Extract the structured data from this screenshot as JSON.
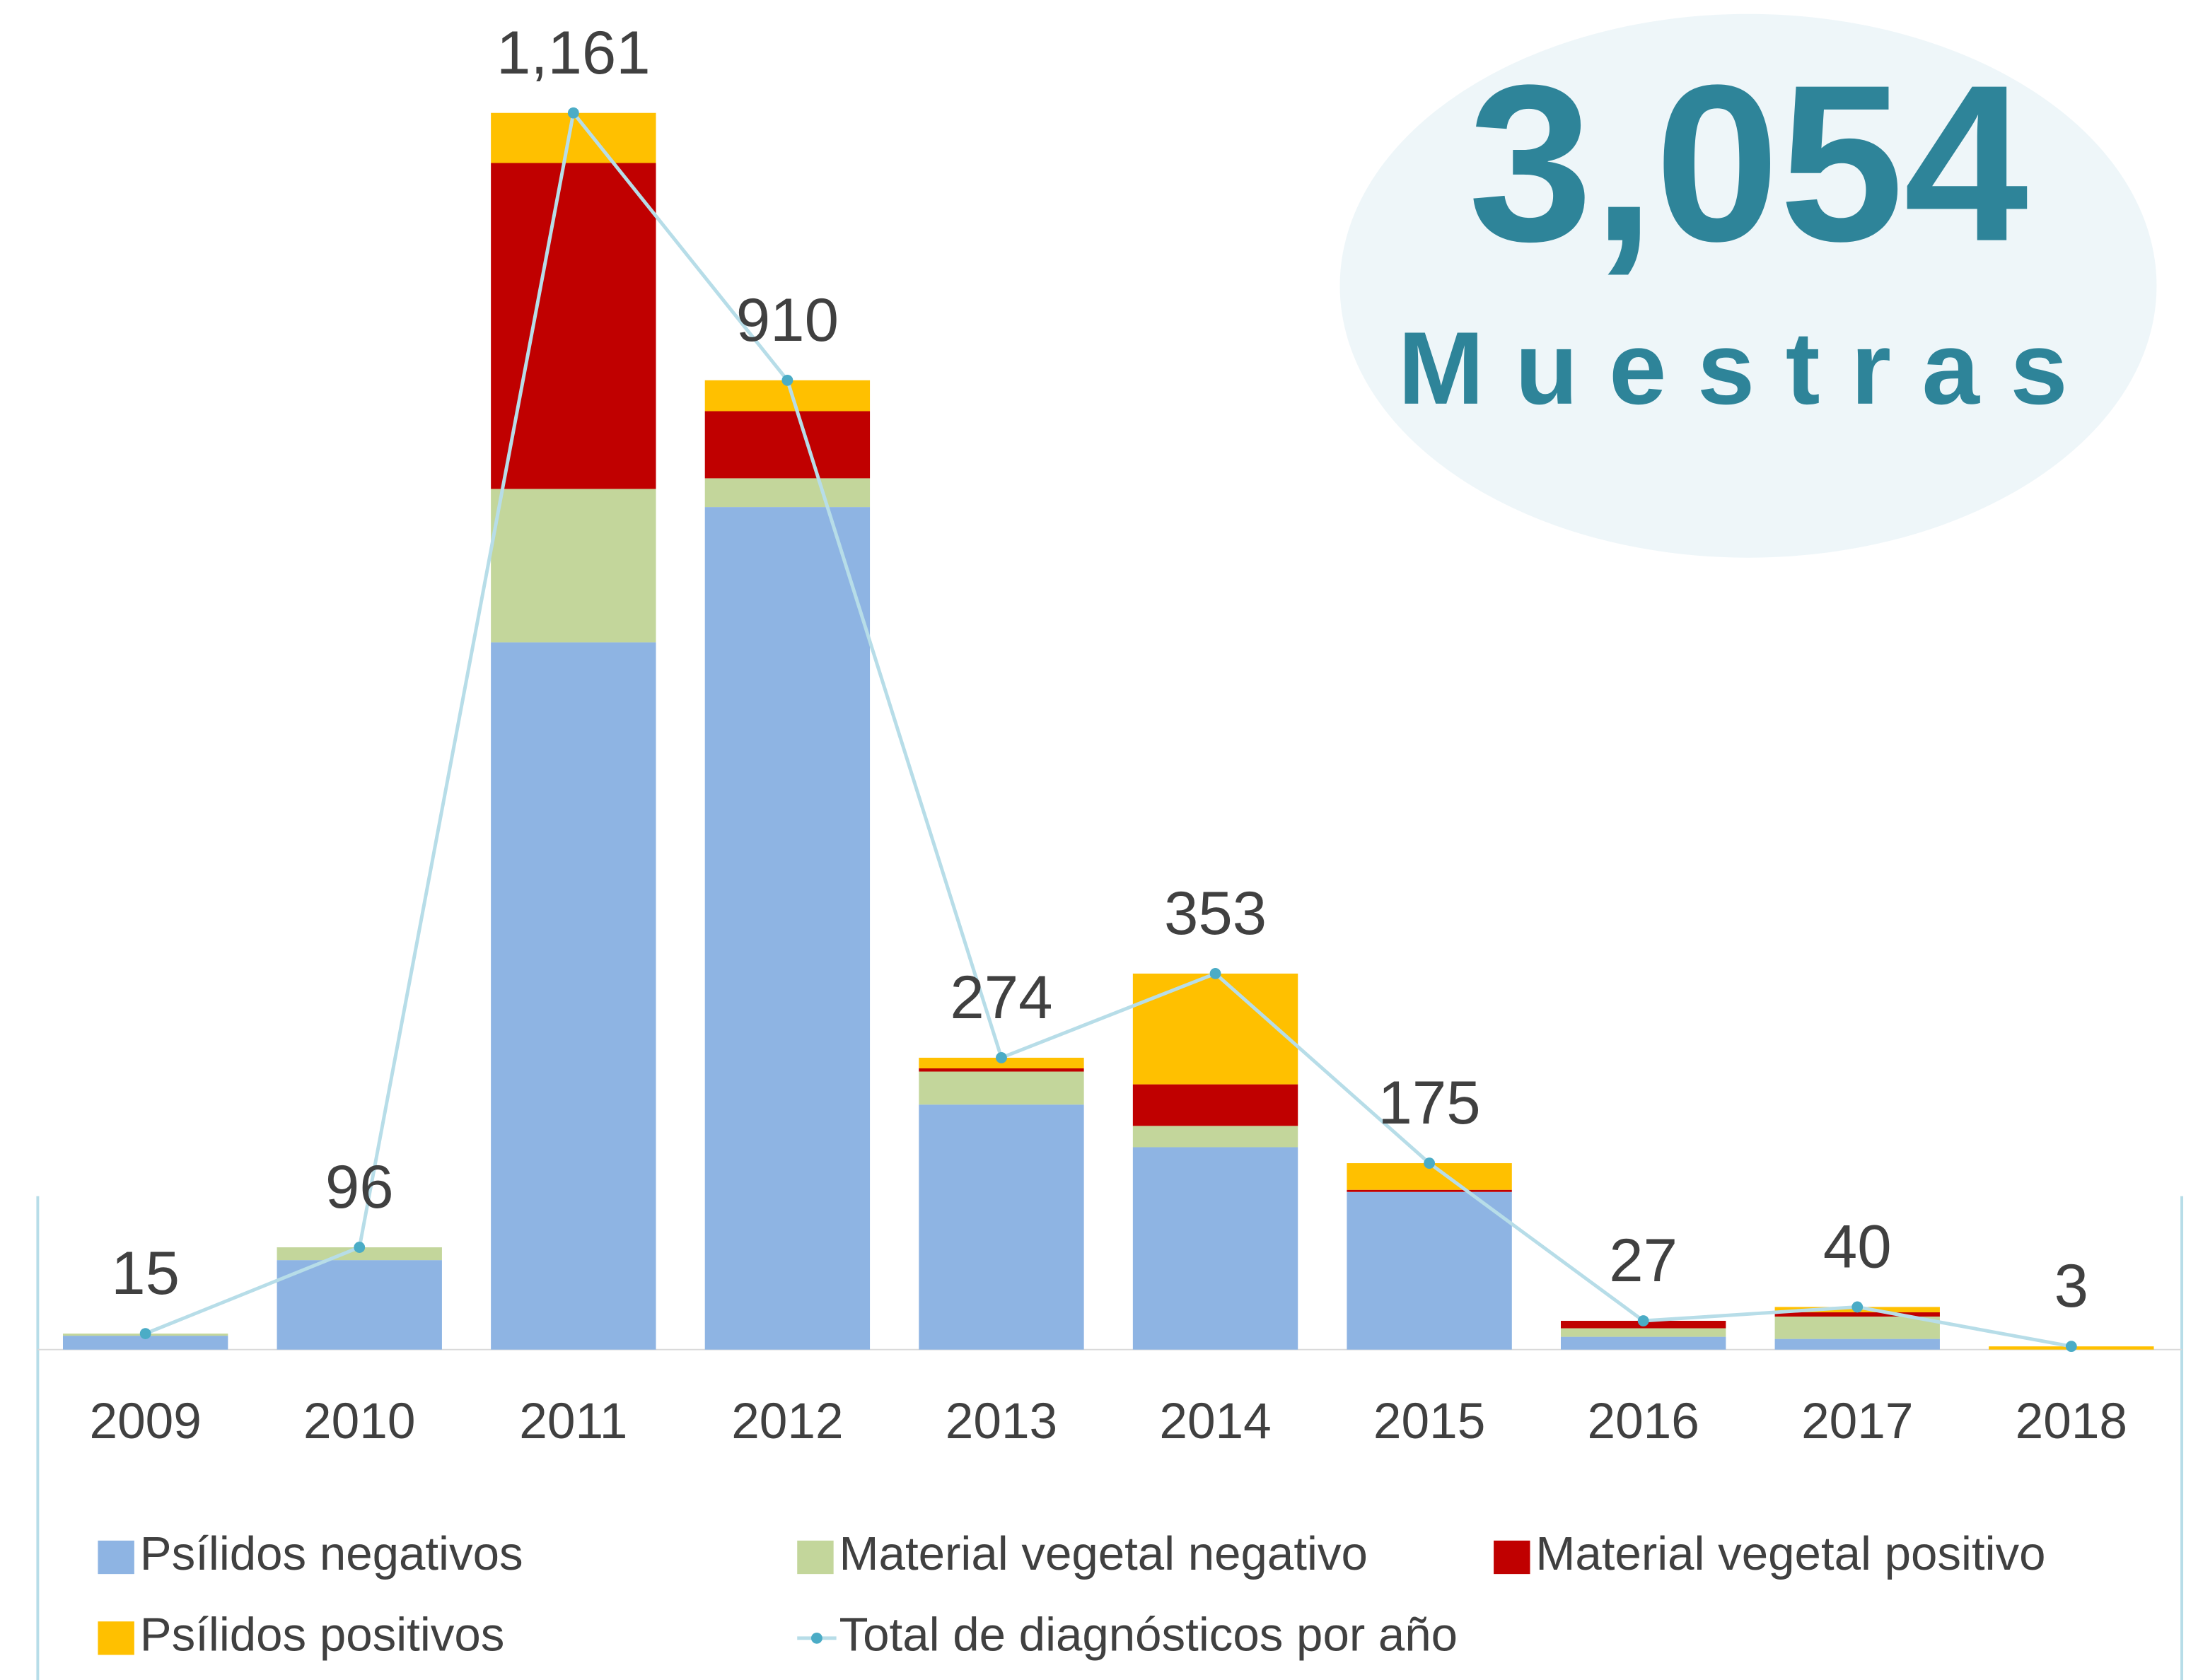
{
  "chart_data": {
    "type": "bar",
    "stacked": true,
    "categories": [
      "2009",
      "2010",
      "2011",
      "2012",
      "2013",
      "2014",
      "2015",
      "2016",
      "2017",
      "2018"
    ],
    "series": [
      {
        "name": "Psílidos negativos",
        "color": "#8eb4e3",
        "values": [
          13,
          84,
          664,
          791,
          230,
          190,
          148,
          12,
          10,
          0
        ]
      },
      {
        "name": "Material vegetal negativo",
        "color": "#c3d69b",
        "values": [
          2,
          12,
          144,
          27,
          31,
          20,
          0,
          8,
          21,
          0
        ]
      },
      {
        "name": "Material vegetal positivo",
        "color": "#c00000",
        "values": [
          0,
          0,
          306,
          63,
          3,
          39,
          2,
          7,
          4,
          0
        ]
      },
      {
        "name": "Psílidos positivos",
        "color": "#ffc000",
        "values": [
          0,
          0,
          47,
          29,
          10,
          104,
          25,
          0,
          5,
          3
        ]
      },
      {
        "name": "Total de diagnósticos por año",
        "type": "line",
        "color": "#b7dde8",
        "marker_color": "#4bacc6",
        "values": [
          15,
          96,
          1161,
          910,
          274,
          353,
          175,
          27,
          40,
          3
        ],
        "value_labels": [
          "15",
          "96",
          "1,161",
          "910",
          "274",
          "353",
          "175",
          "27",
          "40",
          "3"
        ]
      }
    ],
    "annotations": [
      "3,054",
      "Muestras"
    ],
    "legend": "bottom"
  }
}
